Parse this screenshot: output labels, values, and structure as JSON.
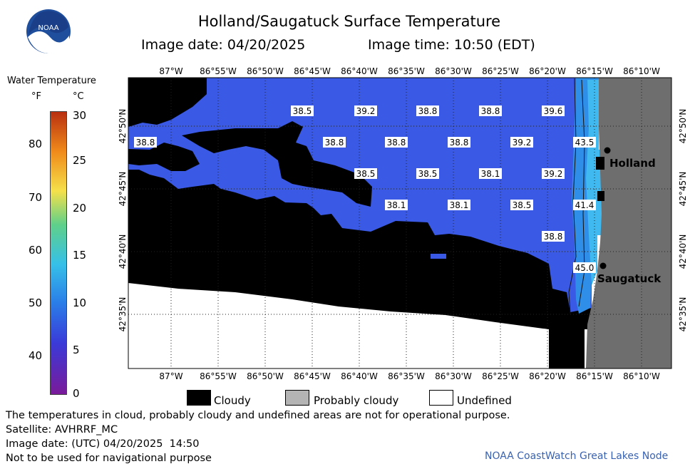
{
  "header": {
    "title": "Holland/Saugatuck Surface Temperature",
    "image_date_label": "Image date: 04/20/2025",
    "image_time_label": "Image time: 10:50 (EDT)"
  },
  "logo": {
    "text": "NOAA"
  },
  "color_scale": {
    "title": "Water Temperature",
    "unit_f": "°F",
    "unit_c": "°C",
    "f_ticks": [
      "80",
      "70",
      "60",
      "50",
      "40"
    ],
    "c_ticks": [
      "30",
      "25",
      "20",
      "15",
      "10",
      "5",
      "0"
    ],
    "colors": [
      "#7a1a9a",
      "#3a3ad8",
      "#2a7ce8",
      "#36c0e8",
      "#5fd08a",
      "#f5e04a",
      "#f08a1a",
      "#b83010"
    ]
  },
  "map": {
    "lon_labels": [
      "87°W",
      "86°55'W",
      "86°50'W",
      "86°45'W",
      "86°40'W",
      "86°35'W",
      "86°30'W",
      "86°25'W",
      "86°20'W",
      "86°15'W",
      "86°10'W"
    ],
    "lat_labels": [
      "42°50'N",
      "42°45'N",
      "42°40'N",
      "42°35'N"
    ],
    "cities": [
      "Holland",
      "Saugatuck"
    ],
    "temperature_labels": [
      "38.5",
      "39.2",
      "38.8",
      "38.8",
      "39.6",
      "38.8",
      "38.8",
      "38.8",
      "38.8",
      "39.2",
      "43.5",
      "38.5",
      "38.5",
      "38.1",
      "39.2",
      "38.1",
      "38.1",
      "38.5",
      "41.4",
      "38.8",
      "45.0"
    ],
    "colors": {
      "water": "#3a5ae6",
      "nearshore": "#2f8fe8",
      "warm": "#40b8f0",
      "land": "#6e6e6e",
      "cloud": "#000000",
      "undefined": "#ffffff"
    }
  },
  "legend": {
    "cloudy": "Cloudy",
    "probably_cloudy": "Probably cloudy",
    "undefined": "Undefined"
  },
  "notes": {
    "line1": "The temperatures in cloud, probably cloudy and undefined areas are not for operational purpose.",
    "line2": "Satellite: AVHRRF_MC",
    "line3": "Image date: (UTC) 04/20/2025  14:50",
    "line4": "Not to be used for navigational purpose",
    "footer": "NOAA CoastWatch Great Lakes Node"
  }
}
